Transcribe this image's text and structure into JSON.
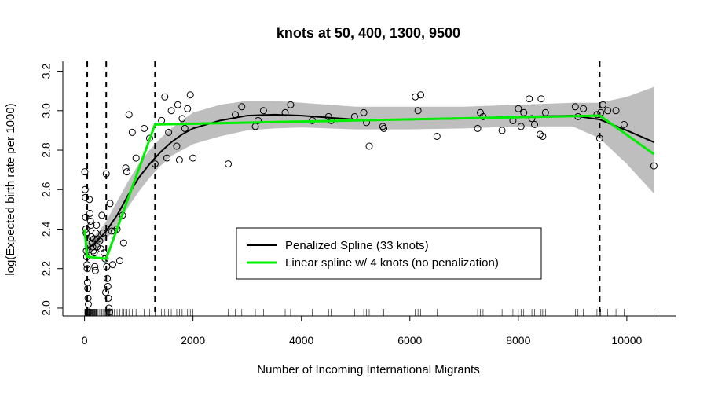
{
  "chart_data": {
    "type": "scatter",
    "title": "knots at 50, 400, 1300, 9500",
    "xlabel": "Number of Incoming International Migrants",
    "ylabel": "log(Expected birth rate per 1000)",
    "xlim": [
      -400,
      10900
    ],
    "ylim": [
      1.96,
      3.25
    ],
    "x_ticks": [
      0,
      2000,
      4000,
      6000,
      8000,
      10000
    ],
    "x_tick_labels": [
      "0",
      "2000",
      "4000",
      "6000",
      "8000",
      "10000"
    ],
    "y_ticks": [
      2.0,
      2.2,
      2.4,
      2.6,
      2.8,
      3.0,
      3.2
    ],
    "y_tick_labels": [
      "2.0",
      "2.2",
      "2.4",
      "2.6",
      "2.8",
      "3.0",
      "3.2"
    ],
    "knots": [
      50,
      400,
      1300,
      9500
    ],
    "legend": {
      "placement": "center-bottom",
      "entries": [
        {
          "label": "Penalized Spline (33 knots)",
          "color": "#000000"
        },
        {
          "label": "Linear spline w/ 4 knots (no penalization)",
          "color": "#00ee00"
        }
      ]
    },
    "colors": {
      "penalized": "#000000",
      "linear": "#00ee00",
      "band": "#bebebe"
    },
    "penalized_spline": {
      "x": [
        0,
        100,
        200,
        300,
        400,
        500,
        600,
        700,
        800,
        1000,
        1200,
        1400,
        1600,
        1800,
        2000,
        2500,
        3000,
        3500,
        4000,
        4500,
        5000,
        6000,
        7000,
        8000,
        9000,
        9500,
        10000,
        10500
      ],
      "y": [
        2.3,
        2.31,
        2.33,
        2.36,
        2.39,
        2.43,
        2.47,
        2.52,
        2.57,
        2.66,
        2.73,
        2.79,
        2.84,
        2.88,
        2.91,
        2.95,
        2.975,
        2.98,
        2.975,
        2.965,
        2.955,
        2.955,
        2.96,
        2.97,
        2.975,
        2.955,
        2.9,
        2.84
      ]
    },
    "confidence_band": {
      "x": [
        0,
        100,
        200,
        300,
        400,
        500,
        600,
        700,
        800,
        1000,
        1200,
        1400,
        1600,
        1800,
        2000,
        2500,
        3000,
        3500,
        4000,
        4500,
        5000,
        6000,
        7000,
        8000,
        9000,
        9500,
        10000,
        10500
      ],
      "lower": [
        2.26,
        2.28,
        2.3,
        2.32,
        2.35,
        2.38,
        2.42,
        2.46,
        2.51,
        2.59,
        2.66,
        2.72,
        2.77,
        2.8,
        2.83,
        2.87,
        2.9,
        2.91,
        2.915,
        2.91,
        2.905,
        2.905,
        2.91,
        2.92,
        2.92,
        2.86,
        2.73,
        2.58
      ],
      "upper": [
        2.34,
        2.35,
        2.37,
        2.4,
        2.44,
        2.49,
        2.54,
        2.59,
        2.64,
        2.73,
        2.8,
        2.86,
        2.91,
        2.95,
        2.99,
        3.03,
        3.05,
        3.05,
        3.04,
        3.03,
        3.02,
        3.02,
        3.02,
        3.03,
        3.04,
        3.04,
        3.07,
        3.12
      ]
    },
    "linear_spline": {
      "x": [
        0,
        50,
        400,
        1300,
        9500,
        10500
      ],
      "y": [
        2.4,
        2.26,
        2.25,
        2.93,
        2.975,
        2.78
      ]
    },
    "points": [
      [
        5,
        2.69
      ],
      [
        10,
        2.6
      ],
      [
        15,
        2.56
      ],
      [
        20,
        2.46
      ],
      [
        25,
        2.4
      ],
      [
        30,
        2.38
      ],
      [
        35,
        2.29
      ],
      [
        40,
        2.26
      ],
      [
        45,
        2.22
      ],
      [
        50,
        2.2
      ],
      [
        55,
        2.13
      ],
      [
        60,
        2.1
      ],
      [
        65,
        2.05
      ],
      [
        70,
        2.02
      ],
      [
        80,
        1.98
      ],
      [
        90,
        2.55
      ],
      [
        100,
        2.48
      ],
      [
        110,
        2.44
      ],
      [
        120,
        2.42
      ],
      [
        130,
        2.36
      ],
      [
        140,
        2.33
      ],
      [
        150,
        2.31
      ],
      [
        160,
        2.29
      ],
      [
        170,
        2.35
      ],
      [
        180,
        2.28
      ],
      [
        190,
        2.21
      ],
      [
        200,
        2.19
      ],
      [
        210,
        2.38
      ],
      [
        220,
        2.42
      ],
      [
        230,
        2.31
      ],
      [
        250,
        2.35
      ],
      [
        280,
        2.34
      ],
      [
        300,
        2.3
      ],
      [
        320,
        2.47
      ],
      [
        340,
        2.38
      ],
      [
        360,
        2.28
      ],
      [
        380,
        2.25
      ],
      [
        390,
        2.08
      ],
      [
        400,
        2.68
      ],
      [
        410,
        2.21
      ],
      [
        420,
        2.15
      ],
      [
        430,
        2.11
      ],
      [
        440,
        2.05
      ],
      [
        450,
        2.0
      ],
      [
        460,
        1.98
      ],
      [
        470,
        2.53
      ],
      [
        500,
        2.39
      ],
      [
        520,
        2.22
      ],
      [
        550,
        2.39
      ],
      [
        600,
        2.4
      ],
      [
        650,
        2.24
      ],
      [
        700,
        2.47
      ],
      [
        720,
        2.33
      ],
      [
        760,
        2.71
      ],
      [
        780,
        2.69
      ],
      [
        820,
        2.98
      ],
      [
        880,
        2.89
      ],
      [
        950,
        2.76
      ],
      [
        1100,
        2.91
      ],
      [
        1200,
        2.86
      ],
      [
        1300,
        2.73
      ],
      [
        1420,
        2.95
      ],
      [
        1480,
        3.07
      ],
      [
        1520,
        2.76
      ],
      [
        1550,
        2.89
      ],
      [
        1600,
        3.0
      ],
      [
        1700,
        2.82
      ],
      [
        1720,
        3.03
      ],
      [
        1750,
        2.75
      ],
      [
        1800,
        2.96
      ],
      [
        1850,
        2.91
      ],
      [
        1900,
        3.01
      ],
      [
        1950,
        3.08
      ],
      [
        2000,
        2.76
      ],
      [
        2650,
        2.73
      ],
      [
        2780,
        2.98
      ],
      [
        2900,
        3.02
      ],
      [
        3150,
        2.92
      ],
      [
        3200,
        2.95
      ],
      [
        3300,
        3.0
      ],
      [
        3700,
        2.99
      ],
      [
        3800,
        3.03
      ],
      [
        4200,
        2.95
      ],
      [
        4500,
        2.97
      ],
      [
        4550,
        2.95
      ],
      [
        4980,
        2.97
      ],
      [
        5150,
        2.99
      ],
      [
        5200,
        2.94
      ],
      [
        5250,
        2.82
      ],
      [
        5500,
        2.92
      ],
      [
        5520,
        2.91
      ],
      [
        6100,
        3.07
      ],
      [
        6150,
        3.0
      ],
      [
        6200,
        3.08
      ],
      [
        6500,
        2.87
      ],
      [
        7250,
        2.91
      ],
      [
        7300,
        2.99
      ],
      [
        7350,
        2.97
      ],
      [
        7700,
        2.9
      ],
      [
        7900,
        2.95
      ],
      [
        8000,
        3.01
      ],
      [
        8050,
        2.92
      ],
      [
        8100,
        2.99
      ],
      [
        8200,
        3.06
      ],
      [
        8250,
        2.96
      ],
      [
        8300,
        2.93
      ],
      [
        8400,
        2.88
      ],
      [
        8420,
        3.06
      ],
      [
        8450,
        2.87
      ],
      [
        8500,
        2.99
      ],
      [
        9050,
        3.02
      ],
      [
        9100,
        2.97
      ],
      [
        9200,
        3.01
      ],
      [
        9450,
        2.98
      ],
      [
        9500,
        2.86
      ],
      [
        9520,
        2.99
      ],
      [
        9560,
        3.03
      ],
      [
        9650,
        3.0
      ],
      [
        9800,
        3.0
      ],
      [
        9950,
        2.93
      ],
      [
        10500,
        2.72
      ]
    ]
  }
}
